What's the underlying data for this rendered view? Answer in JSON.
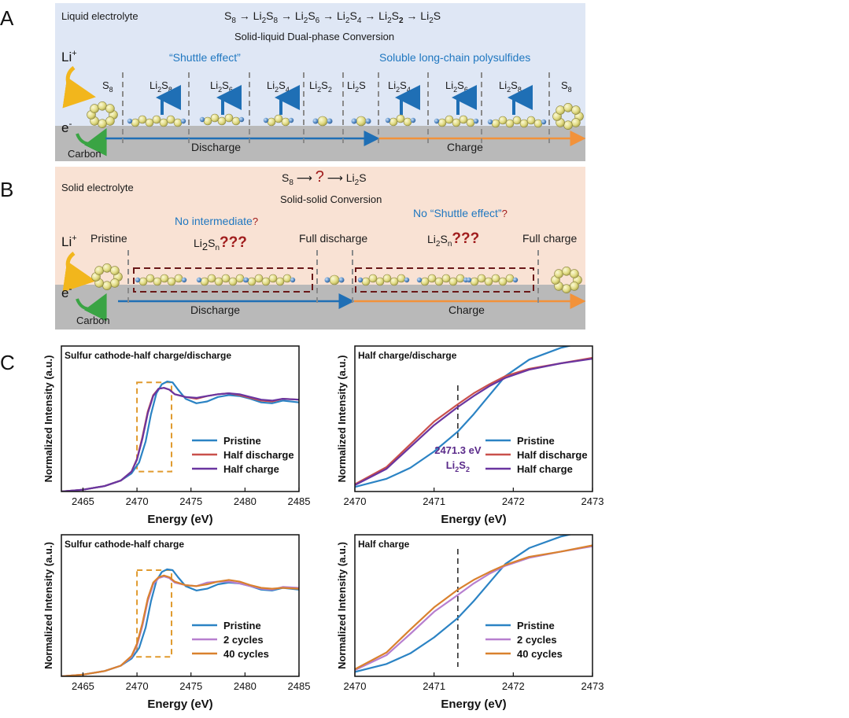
{
  "panel_labels": {
    "a": "A",
    "b": "B",
    "c": "C"
  },
  "colors": {
    "panel_a_bg": "#dfe7f5",
    "panel_b_bg": "#f9e2d4",
    "substrate": "#b9b9b9",
    "discharge_arrow": "#1f6fb5",
    "charge_arrow": "#f2923a",
    "sulfur": "#e8e39a",
    "lithium": "#5b8fc9",
    "question": "#a01c1c",
    "pristine": "#2b83c4",
    "half_discharge": "#c9504c",
    "half_charge": "#6a35a0",
    "cycles_2": "#b77fcf",
    "cycles_40": "#d9812e",
    "dash_box": "#e09a2e"
  },
  "panel_a": {
    "electrolyte": "Liquid electrolyte",
    "pathway_parts": [
      "S",
      "8",
      " → Li",
      "2",
      "S",
      "8",
      " → Li",
      "2",
      "S",
      "6",
      " → Li",
      "2",
      "S",
      "4",
      " → Li",
      "2",
      "S",
      "2",
      " → Li",
      "2",
      "S"
    ],
    "pathway_name": "Solid-liquid Dual-phase Conversion",
    "shuttle": "“Shuttle effect”",
    "soluble": "Soluble long-chain polysulfides",
    "li_ion": "Li",
    "li_sup": "+",
    "electron": "e",
    "electron_sup": "-",
    "carbon": "Carbon",
    "discharge": "Discharge",
    "charge": "Charge",
    "species": [
      {
        "base": "S",
        "sub": "8"
      },
      {
        "base": "Li",
        "sub": "2",
        "tail": "S",
        "tsub": "8"
      },
      {
        "base": "Li",
        "sub": "2",
        "tail": "S",
        "tsub": "6"
      },
      {
        "base": "Li",
        "sub": "2",
        "tail": "S",
        "tsub": "4"
      },
      {
        "base": "Li",
        "sub": "2",
        "tail": "S",
        "tsub": "2"
      },
      {
        "base": "Li",
        "sub": "2",
        "tail": "S",
        "tsub": ""
      },
      {
        "base": "Li",
        "sub": "2",
        "tail": "S",
        "tsub": "4"
      },
      {
        "base": "Li",
        "sub": "2",
        "tail": "S",
        "tsub": "6"
      },
      {
        "base": "Li",
        "sub": "2",
        "tail": "S",
        "tsub": "8"
      },
      {
        "base": "S",
        "sub": "8"
      }
    ]
  },
  "panel_b": {
    "electrolyte": "Solid electrolyte",
    "pathway_start": "S",
    "pathway_start_sub": "8",
    "pathway_q": "?",
    "pathway_end": "Li",
    "pathway_end_sub": "2",
    "pathway_end_tail": "S",
    "pathway_name": "Solid-solid Conversion",
    "no_intermediate": "No intermediate",
    "no_shuttle": "No “Shuttle effect”",
    "q": "?",
    "lisn_base": "Li",
    "lisn_sub": "2",
    "lisn_tail": "S",
    "lisn_tsub": "n",
    "lisn_q": "???",
    "pristine": "Pristine",
    "full_discharge": "Full discharge",
    "full_charge": "Full charge",
    "li_ion": "Li",
    "li_sup": "+",
    "electron": "e",
    "electron_sup": "-",
    "carbon": "Carbon",
    "discharge": "Discharge",
    "charge": "Charge"
  },
  "chart_data": [
    {
      "type": "line",
      "title": "Sulfur cathode-half charge/discharge",
      "xlabel": "Energy (eV)",
      "ylabel": "Normalized Intensity (a.u.)",
      "xlim": [
        2463,
        2485
      ],
      "ylim": [
        0,
        1.6
      ],
      "xticks": [
        2465,
        2470,
        2475,
        2480,
        2485
      ],
      "highlight_box": {
        "x": [
          2470,
          2473.2
        ],
        "y": [
          0.22,
          1.2
        ]
      },
      "series": [
        {
          "name": "Pristine",
          "color": "#2b83c4",
          "x": [
            2463,
            2465,
            2467,
            2468.5,
            2469.5,
            2470.2,
            2470.8,
            2471.3,
            2471.8,
            2472.3,
            2472.8,
            2473.3,
            2473.8,
            2474.5,
            2475.5,
            2476.5,
            2477.5,
            2478.5,
            2479.5,
            2480.5,
            2481.5,
            2482.5,
            2483.5,
            2485
          ],
          "y": [
            0.0,
            0.02,
            0.06,
            0.12,
            0.2,
            0.32,
            0.55,
            0.85,
            1.08,
            1.18,
            1.21,
            1.2,
            1.12,
            1.02,
            0.97,
            0.99,
            1.04,
            1.06,
            1.05,
            1.02,
            0.98,
            0.97,
            1.0,
            0.98
          ]
        },
        {
          "name": "Half discharge",
          "color": "#c9504c",
          "x": [
            2463,
            2465,
            2467,
            2468.5,
            2469.5,
            2470.0,
            2470.5,
            2471.0,
            2471.5,
            2472.0,
            2472.5,
            2473.0,
            2473.5,
            2474.5,
            2475.5,
            2476.5,
            2477.5,
            2478.5,
            2479.5,
            2480.5,
            2481.5,
            2482.5,
            2483.5,
            2485
          ],
          "y": [
            0.0,
            0.02,
            0.06,
            0.12,
            0.22,
            0.36,
            0.6,
            0.88,
            1.06,
            1.13,
            1.14,
            1.12,
            1.07,
            1.04,
            1.02,
            1.05,
            1.07,
            1.08,
            1.06,
            1.03,
            1.0,
            0.99,
            1.02,
            1.01
          ]
        },
        {
          "name": "Half charge",
          "color": "#6a35a0",
          "x": [
            2463,
            2465,
            2467,
            2468.5,
            2469.5,
            2470.0,
            2470.5,
            2471.0,
            2471.5,
            2472.0,
            2472.5,
            2473.0,
            2473.5,
            2474.5,
            2475.5,
            2476.5,
            2477.5,
            2478.5,
            2479.5,
            2480.5,
            2481.5,
            2482.5,
            2483.5,
            2485
          ],
          "y": [
            0.0,
            0.02,
            0.06,
            0.12,
            0.22,
            0.35,
            0.58,
            0.86,
            1.05,
            1.13,
            1.14,
            1.12,
            1.07,
            1.04,
            1.03,
            1.05,
            1.07,
            1.08,
            1.07,
            1.04,
            1.01,
            1.0,
            1.02,
            1.01
          ]
        }
      ],
      "legend": "bottom-right"
    },
    {
      "type": "line",
      "title": "Half charge/discharge",
      "xlabel": "Energy (eV)",
      "ylabel": "Normalized Intensity (a.u.)",
      "xlim": [
        2470,
        2473
      ],
      "ylim": [
        0,
        1.6
      ],
      "xticks": [
        2470,
        2471,
        2472,
        2473
      ],
      "marker_line": {
        "x": 2471.3
      },
      "annotation": {
        "text": "2471.3 eV",
        "species_base": "Li",
        "species_sub": "2",
        "species_tail": "S",
        "species_tsub": "2"
      },
      "series": [
        {
          "name": "Pristine",
          "color": "#2b83c4",
          "x": [
            2470,
            2470.4,
            2470.7,
            2471.0,
            2471.3,
            2471.5,
            2471.7,
            2471.9,
            2472.2,
            2472.6,
            2473.0
          ],
          "y": [
            0.05,
            0.14,
            0.26,
            0.44,
            0.66,
            0.85,
            1.06,
            1.27,
            1.45,
            1.58,
            1.66
          ]
        },
        {
          "name": "Half discharge",
          "color": "#c9504c",
          "x": [
            2470,
            2470.4,
            2470.7,
            2471.0,
            2471.3,
            2471.5,
            2471.7,
            2471.9,
            2472.2,
            2472.6,
            2473.0
          ],
          "y": [
            0.08,
            0.27,
            0.52,
            0.77,
            0.96,
            1.08,
            1.18,
            1.27,
            1.35,
            1.41,
            1.47
          ]
        },
        {
          "name": "Half charge",
          "color": "#6a35a0",
          "x": [
            2470,
            2470.4,
            2470.7,
            2471.0,
            2471.3,
            2471.5,
            2471.7,
            2471.9,
            2472.2,
            2472.6,
            2473.0
          ],
          "y": [
            0.07,
            0.25,
            0.49,
            0.73,
            0.93,
            1.05,
            1.16,
            1.25,
            1.34,
            1.41,
            1.46
          ]
        }
      ],
      "legend": "bottom-right"
    },
    {
      "type": "line",
      "title": "Sulfur cathode-half charge",
      "xlabel": "Energy (eV)",
      "ylabel": "Normalized Intensity (a.u.)",
      "xlim": [
        2463,
        2485
      ],
      "ylim": [
        0,
        1.6
      ],
      "xticks": [
        2465,
        2470,
        2475,
        2480,
        2485
      ],
      "highlight_box": {
        "x": [
          2470,
          2473.2
        ],
        "y": [
          0.22,
          1.2
        ]
      },
      "series": [
        {
          "name": "Pristine",
          "color": "#2b83c4",
          "x": [
            2463,
            2465,
            2467,
            2468.5,
            2469.5,
            2470.2,
            2470.8,
            2471.3,
            2471.8,
            2472.3,
            2472.8,
            2473.3,
            2473.8,
            2474.5,
            2475.5,
            2476.5,
            2477.5,
            2478.5,
            2479.5,
            2480.5,
            2481.5,
            2482.5,
            2483.5,
            2485
          ],
          "y": [
            0.0,
            0.02,
            0.06,
            0.12,
            0.2,
            0.32,
            0.55,
            0.85,
            1.08,
            1.18,
            1.21,
            1.2,
            1.12,
            1.02,
            0.97,
            0.99,
            1.04,
            1.06,
            1.05,
            1.02,
            0.98,
            0.97,
            1.0,
            0.98
          ]
        },
        {
          "name": "2 cycles",
          "color": "#b77fcf",
          "x": [
            2463,
            2465,
            2467,
            2468.5,
            2469.5,
            2470.0,
            2470.5,
            2471.0,
            2471.5,
            2472.0,
            2472.5,
            2473.0,
            2473.5,
            2474.5,
            2475.5,
            2476.5,
            2477.5,
            2478.5,
            2479.5,
            2480.5,
            2481.5,
            2482.5,
            2483.5,
            2485
          ],
          "y": [
            0.0,
            0.02,
            0.06,
            0.12,
            0.22,
            0.35,
            0.57,
            0.85,
            1.04,
            1.11,
            1.13,
            1.11,
            1.06,
            1.03,
            1.02,
            1.06,
            1.07,
            1.07,
            1.05,
            1.02,
            0.99,
            0.98,
            1.01,
            1.0
          ]
        },
        {
          "name": "40 cycles",
          "color": "#d9812e",
          "x": [
            2463,
            2465,
            2467,
            2468.5,
            2469.5,
            2470.0,
            2470.5,
            2471.0,
            2471.5,
            2472.0,
            2472.5,
            2473.0,
            2473.5,
            2474.5,
            2475.5,
            2476.5,
            2477.5,
            2478.5,
            2479.5,
            2480.5,
            2481.5,
            2482.5,
            2483.5,
            2485
          ],
          "y": [
            0.0,
            0.02,
            0.06,
            0.12,
            0.23,
            0.37,
            0.6,
            0.88,
            1.06,
            1.12,
            1.14,
            1.12,
            1.07,
            1.03,
            1.02,
            1.04,
            1.07,
            1.09,
            1.07,
            1.03,
            1.0,
            0.99,
            1.0,
            0.99
          ]
        }
      ],
      "legend": "bottom-right"
    },
    {
      "type": "line",
      "title": "Half charge",
      "xlabel": "Energy (eV)",
      "ylabel": "Normalized Intensity (a.u.)",
      "xlim": [
        2470,
        2473
      ],
      "ylim": [
        0,
        1.6
      ],
      "xticks": [
        2470,
        2471,
        2472,
        2473
      ],
      "marker_line": {
        "x": 2471.3
      },
      "series": [
        {
          "name": "Pristine",
          "color": "#2b83c4",
          "x": [
            2470,
            2470.4,
            2470.7,
            2471.0,
            2471.3,
            2471.5,
            2471.7,
            2471.9,
            2472.2,
            2472.6,
            2473.0
          ],
          "y": [
            0.05,
            0.14,
            0.26,
            0.44,
            0.66,
            0.85,
            1.06,
            1.27,
            1.45,
            1.58,
            1.66
          ]
        },
        {
          "name": "2 cycles",
          "color": "#b77fcf",
          "x": [
            2470,
            2470.4,
            2470.7,
            2471.0,
            2471.3,
            2471.5,
            2471.7,
            2471.9,
            2472.2,
            2472.6,
            2473.0
          ],
          "y": [
            0.07,
            0.24,
            0.48,
            0.73,
            0.92,
            1.05,
            1.16,
            1.25,
            1.34,
            1.41,
            1.47
          ]
        },
        {
          "name": "40 cycles",
          "color": "#d9812e",
          "x": [
            2470,
            2470.4,
            2470.7,
            2471.0,
            2471.3,
            2471.5,
            2471.7,
            2471.9,
            2472.2,
            2472.6,
            2473.0
          ],
          "y": [
            0.08,
            0.27,
            0.53,
            0.78,
            0.98,
            1.09,
            1.18,
            1.26,
            1.35,
            1.41,
            1.48
          ]
        }
      ],
      "legend": "bottom-right"
    }
  ]
}
